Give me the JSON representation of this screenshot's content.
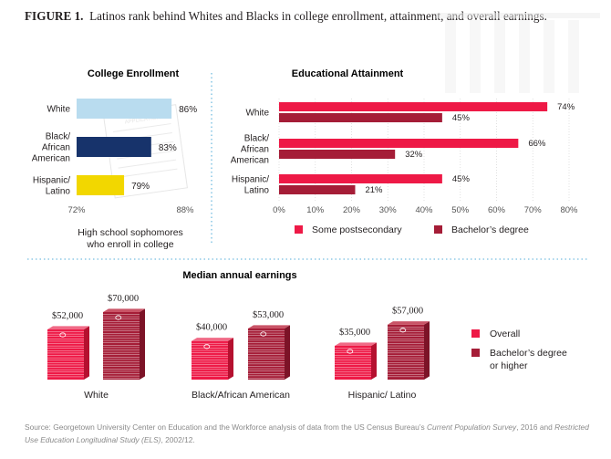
{
  "figure": {
    "label": "FIGURE 1.",
    "title": "Latinos rank behind Whites and Blacks in college enrollment, attainment, and overall earnings."
  },
  "colors": {
    "enroll_white": "#b9dcef",
    "enroll_black": "#17336b",
    "enroll_hispanic": "#f2d700",
    "some_postsecondary": "#ee1946",
    "bachelors": "#a51d37",
    "divider": "#8ec9e6"
  },
  "chart_data": [
    {
      "type": "bar",
      "orientation": "horizontal",
      "title": "College Enrollment",
      "categories": [
        "White",
        "Black/African American",
        "Hispanic/Latino"
      ],
      "category_lines": [
        [
          "White"
        ],
        [
          "Black/",
          "African",
          "American"
        ],
        [
          "Hispanic/",
          "Latino"
        ]
      ],
      "values": [
        86,
        83,
        79
      ],
      "value_labels": [
        "86%",
        "83%",
        "79%"
      ],
      "xlim": [
        72,
        88
      ],
      "tick_labels": [
        "72%",
        "88%"
      ],
      "xlabel_lines": [
        "High school sophomores",
        "who enroll in college"
      ],
      "grid": false
    },
    {
      "type": "bar",
      "orientation": "horizontal",
      "title": "Educational Attainment",
      "categories": [
        "White",
        "Black/African American",
        "Hispanic/Latino"
      ],
      "category_lines": [
        [
          "White"
        ],
        [
          "Black/",
          "African",
          "American"
        ],
        [
          "Hispanic/",
          "Latino"
        ]
      ],
      "series": [
        {
          "name": "Some postsecondary",
          "values": [
            74,
            66,
            45
          ],
          "labels": [
            "74%",
            "66%",
            "45%"
          ]
        },
        {
          "name": "Bachelor’s degree",
          "values": [
            45,
            32,
            21
          ],
          "labels": [
            "45%",
            "32%",
            "21%"
          ]
        }
      ],
      "xlim": [
        0,
        80
      ],
      "ticks": [
        0,
        10,
        20,
        30,
        40,
        50,
        60,
        70,
        80
      ],
      "tick_labels": [
        "0%",
        "10%",
        "20%",
        "30%",
        "40%",
        "50%",
        "60%",
        "70%",
        "80%"
      ],
      "grid": true,
      "legend_position": "bottom"
    },
    {
      "type": "bar",
      "title": "Median annual earnings",
      "categories": [
        "White",
        "Black/African American",
        "Hispanic/ Latino"
      ],
      "series": [
        {
          "name": "Overall",
          "values": [
            52000,
            40000,
            35000
          ],
          "labels": [
            "$52,000",
            "$40,000",
            "$35,000"
          ]
        },
        {
          "name": "Bachelor’s degree or higher",
          "legend_lines": [
            "Bachelor’s degree",
            "or higher"
          ],
          "values": [
            70000,
            53000,
            57000
          ],
          "labels": [
            "$70,000",
            "$53,000",
            "$57,000"
          ]
        }
      ],
      "legend_position": "right"
    }
  ],
  "source": {
    "prefix": "Source: Georgetown University Center on Education and the Workforce analysis of data from the US Census Bureau’s ",
    "italic1": "Current Population Survey",
    "middle": ", 2016 and ",
    "italic2": "Restricted Use Education Longitudinal Study (ELS)",
    "suffix": ", 2002/12."
  }
}
